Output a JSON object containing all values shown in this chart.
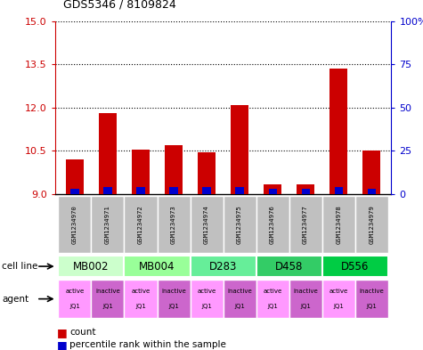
{
  "title": "GDS5346 / 8109824",
  "samples": [
    "GSM1234970",
    "GSM1234971",
    "GSM1234972",
    "GSM1234973",
    "GSM1234974",
    "GSM1234975",
    "GSM1234976",
    "GSM1234977",
    "GSM1234978",
    "GSM1234979"
  ],
  "count_values": [
    10.2,
    11.8,
    10.55,
    10.7,
    10.45,
    12.1,
    9.35,
    9.35,
    13.35,
    10.5
  ],
  "percentile_values": [
    3,
    4,
    4,
    4,
    4,
    4,
    3,
    3,
    4,
    3
  ],
  "ylim_left": [
    9,
    15
  ],
  "ylim_right": [
    0,
    100
  ],
  "yticks_left": [
    9,
    10.5,
    12,
    13.5,
    15
  ],
  "yticks_right": [
    0,
    25,
    50,
    75,
    100
  ],
  "cell_lines": [
    {
      "label": "MB002",
      "span": [
        0,
        2
      ],
      "color": "#ccffcc"
    },
    {
      "label": "MB004",
      "span": [
        2,
        4
      ],
      "color": "#99ff99"
    },
    {
      "label": "D283",
      "span": [
        4,
        6
      ],
      "color": "#66ee99"
    },
    {
      "label": "D458",
      "span": [
        6,
        8
      ],
      "color": "#33cc66"
    },
    {
      "label": "D556",
      "span": [
        8,
        10
      ],
      "color": "#00cc44"
    }
  ],
  "agent_colors": [
    "#ff99ff",
    "#cc66cc"
  ],
  "bar_color_red": "#cc0000",
  "bar_color_blue": "#0000cc",
  "bar_width": 0.55,
  "sample_bg_color": "#c0c0c0",
  "left_axis_color": "#cc0000",
  "right_axis_color": "#0000cc",
  "legend_square_red": "count",
  "legend_square_blue": "percentile rank within the sample"
}
